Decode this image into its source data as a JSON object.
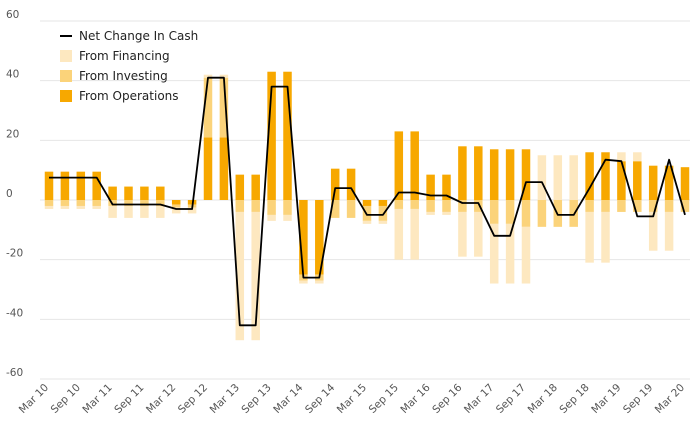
{
  "chart_data": {
    "type": "bar",
    "stacked": true,
    "ylim": [
      -60,
      60
    ],
    "yticks": [
      60,
      40,
      20,
      0,
      -20,
      -40,
      -60
    ],
    "grid": true,
    "legend_position": "top-left",
    "colors": {
      "net": "#000000",
      "financing": "#fde8c0",
      "investing": "#fbd37a",
      "operations": "#f7a800",
      "grid": "#e6e6e6",
      "tick": "#555555"
    },
    "legend": [
      {
        "key": "net",
        "label": "Net Change In Cash",
        "symbol": "line"
      },
      {
        "key": "financing",
        "label": "From Financing",
        "symbol": "box"
      },
      {
        "key": "investing",
        "label": "From Investing",
        "symbol": "box"
      },
      {
        "key": "operations",
        "label": "From Operations",
        "symbol": "box"
      }
    ],
    "x_tick_labels": [
      "Mar 10",
      "Sep 10",
      "Mar 11",
      "Sep 11",
      "Mar 12",
      "Sep 12",
      "Mar 13",
      "Sep 13",
      "Mar 14",
      "Sep 14",
      "Mar 15",
      "Sep 15",
      "Mar 16",
      "Sep 16",
      "Mar 17",
      "Sep 17",
      "Mar 18",
      "Sep 18",
      "Mar 19",
      "Sep 19",
      "Mar 20"
    ],
    "categories": [
      "Mar 10",
      "Jun 10",
      "Sep 10",
      "Dec 10",
      "Mar 11",
      "Jun 11",
      "Sep 11",
      "Dec 11",
      "Mar 12",
      "Jun 12",
      "Sep 12",
      "Dec 12",
      "Mar 13",
      "Jun 13",
      "Sep 13",
      "Dec 13",
      "Mar 14",
      "Jun 14",
      "Sep 14",
      "Dec 14",
      "Mar 15",
      "Jun 15",
      "Sep 15",
      "Dec 15",
      "Mar 16",
      "Jun 16",
      "Sep 16",
      "Dec 16",
      "Mar 17",
      "Jun 17",
      "Sep 17",
      "Dec 17",
      "Mar 18",
      "Jun 18",
      "Sep 18",
      "Dec 18",
      "Mar 19",
      "Jun 19",
      "Sep 19",
      "Dec 19",
      "Mar 20"
    ],
    "series": [
      {
        "name": "From Operations",
        "key": "operations",
        "values": [
          9.5,
          9.5,
          9.5,
          9.5,
          4.5,
          4.5,
          4.5,
          4.5,
          -1.5,
          -1.5,
          21,
          21,
          8.5,
          8.5,
          43,
          43,
          -25,
          -25,
          10.5,
          10.5,
          -2,
          -2,
          23,
          23,
          8.5,
          8.5,
          18,
          18,
          17,
          17,
          17,
          0,
          0,
          0,
          16,
          16,
          13,
          13,
          11.5,
          11.5,
          11
        ]
      },
      {
        "name": "From Investing",
        "key": "investing",
        "values": [
          -2,
          -2,
          -2,
          -2,
          -2,
          -2,
          -2,
          -2,
          -1,
          -1,
          20,
          20,
          -4,
          -4,
          -5,
          -5,
          -2,
          -2,
          -6,
          -6,
          -5,
          -5,
          -3,
          -3,
          -4,
          -4,
          -4,
          -4,
          -8,
          -8,
          -9,
          -9,
          -9,
          -9,
          -4,
          -4,
          -4,
          -4,
          -4,
          -4,
          -4
        ]
      },
      {
        "name": "From Financing",
        "key": "financing",
        "values": [
          -1,
          -1,
          -1,
          -1,
          -4,
          -4,
          -4,
          -4,
          -2,
          -2,
          1,
          1,
          -43,
          -43,
          -2,
          -2,
          -1,
          -1,
          0,
          0,
          -1,
          -1,
          -17,
          -17,
          -1,
          -1,
          -15,
          -15,
          -20,
          -20,
          -19,
          15,
          15,
          15,
          -17,
          -17,
          3,
          3,
          -13,
          -13,
          0
        ]
      },
      {
        "name": "Net Change In Cash",
        "key": "net",
        "type": "line",
        "values": [
          7.5,
          7.5,
          7.5,
          7.5,
          -1.5,
          -1.5,
          -1.5,
          -1.5,
          -3,
          -3,
          41,
          41,
          -42,
          -42,
          38,
          38,
          -26,
          -26,
          4,
          4,
          -5,
          -5,
          2.5,
          2.5,
          1.5,
          1.5,
          -1,
          -1,
          -12,
          -12,
          6,
          6,
          -5,
          -5,
          4,
          13.5,
          13,
          -5.5,
          -5.5,
          13.5,
          -5
        ]
      }
    ]
  }
}
